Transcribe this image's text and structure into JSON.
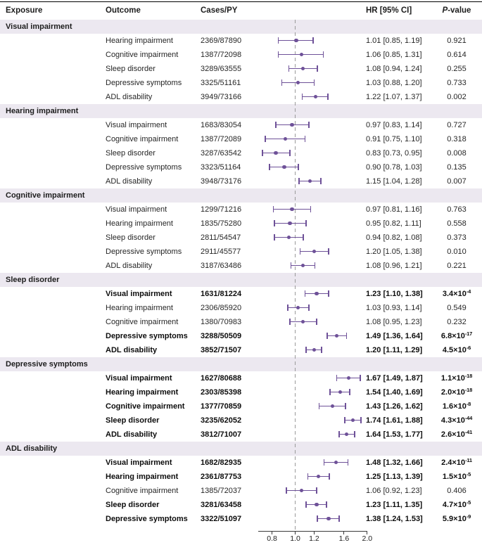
{
  "chart_data": {
    "type": "forest",
    "columns": [
      "Exposure",
      "Outcome",
      "Cases/PY",
      "HR [95% CI]"
    ],
    "p_column": {
      "italic_part": "P",
      "rest": "-value"
    },
    "x_axis": {
      "scale": "log",
      "range": [
        0.7,
        2.0
      ],
      "ticks": [
        "0.8",
        "1.0",
        "1.2",
        "1.6",
        "2.0"
      ],
      "reference_line": 1.0
    },
    "colors": {
      "marker": "#6e5198",
      "section_band": "#ece8f0",
      "reference_line": "#9a9a9a"
    },
    "sections": [
      {
        "exposure": "Visual impairment",
        "rows": [
          {
            "outcome": "Hearing impairment",
            "cases_py": "2369/87890",
            "hr": 1.01,
            "ci": [
              0.85,
              1.19
            ],
            "hr_text": "1.01 [0.85, 1.19]",
            "p_base": "0.921",
            "p_sup": "",
            "bold": false
          },
          {
            "outcome": "Cognitive impairment",
            "cases_py": "1387/72098",
            "hr": 1.06,
            "ci": [
              0.85,
              1.31
            ],
            "hr_text": "1.06 [0.85, 1.31]",
            "p_base": "0.614",
            "p_sup": "",
            "bold": false
          },
          {
            "outcome": "Sleep disorder",
            "cases_py": "3289/63555",
            "hr": 1.08,
            "ci": [
              0.94,
              1.24
            ],
            "hr_text": "1.08 [0.94, 1.24]",
            "p_base": "0.255",
            "p_sup": "",
            "bold": false
          },
          {
            "outcome": "Depressive symptoms",
            "cases_py": "3325/51161",
            "hr": 1.03,
            "ci": [
              0.88,
              1.2
            ],
            "hr_text": "1.03 [0.88, 1.20]",
            "p_base": "0.733",
            "p_sup": "",
            "bold": false
          },
          {
            "outcome": "ADL disability",
            "cases_py": "3949/73166",
            "hr": 1.22,
            "ci": [
              1.07,
              1.37
            ],
            "hr_text": "1.22 [1.07, 1.37]",
            "p_base": "0.002",
            "p_sup": "",
            "bold": false
          }
        ]
      },
      {
        "exposure": "Hearing impairment",
        "rows": [
          {
            "outcome": "Visual impairment",
            "cases_py": "1683/83054",
            "hr": 0.97,
            "ci": [
              0.83,
              1.14
            ],
            "hr_text": "0.97 [0.83, 1.14]",
            "p_base": "0.727",
            "p_sup": "",
            "bold": false
          },
          {
            "outcome": "Cognitive impairment",
            "cases_py": "1387/72089",
            "hr": 0.91,
            "ci": [
              0.75,
              1.1
            ],
            "hr_text": "0.91 [0.75, 1.10]",
            "p_base": "0.318",
            "p_sup": "",
            "bold": false
          },
          {
            "outcome": "Sleep disorder",
            "cases_py": "3287/63542",
            "hr": 0.83,
            "ci": [
              0.73,
              0.95
            ],
            "hr_text": "0.83 [0.73, 0.95]",
            "p_base": "0.008",
            "p_sup": "",
            "bold": false
          },
          {
            "outcome": "Depressive symptoms",
            "cases_py": "3323/51164",
            "hr": 0.9,
            "ci": [
              0.78,
              1.03
            ],
            "hr_text": "0.90 [0.78, 1.03]",
            "p_base": "0.135",
            "p_sup": "",
            "bold": false
          },
          {
            "outcome": "ADL disability",
            "cases_py": "3948/73176",
            "hr": 1.15,
            "ci": [
              1.04,
              1.28
            ],
            "hr_text": "1.15 [1.04, 1.28]",
            "p_base": "0.007",
            "p_sup": "",
            "bold": false
          }
        ]
      },
      {
        "exposure": "Cognitive impairment",
        "rows": [
          {
            "outcome": "Visual impairment",
            "cases_py": "1299/71216",
            "hr": 0.97,
            "ci": [
              0.81,
              1.16
            ],
            "hr_text": "0.97 [0.81, 1.16]",
            "p_base": "0.763",
            "p_sup": "",
            "bold": false
          },
          {
            "outcome": "Hearing impairment",
            "cases_py": "1835/75280",
            "hr": 0.95,
            "ci": [
              0.82,
              1.11
            ],
            "hr_text": "0.95 [0.82, 1.11]",
            "p_base": "0.558",
            "p_sup": "",
            "bold": false
          },
          {
            "outcome": "Sleep disorder",
            "cases_py": "2811/54547",
            "hr": 0.94,
            "ci": [
              0.82,
              1.08
            ],
            "hr_text": "0.94 [0.82, 1.08]",
            "p_base": "0.373",
            "p_sup": "",
            "bold": false
          },
          {
            "outcome": "Depressive symptoms",
            "cases_py": "2911/45577",
            "hr": 1.2,
            "ci": [
              1.05,
              1.38
            ],
            "hr_text": "1.20 [1.05, 1.38]",
            "p_base": "0.010",
            "p_sup": "",
            "bold": false
          },
          {
            "outcome": "ADL disability",
            "cases_py": "3187/63486",
            "hr": 1.08,
            "ci": [
              0.96,
              1.21
            ],
            "hr_text": "1.08 [0.96, 1.21]",
            "p_base": "0.221",
            "p_sup": "",
            "bold": false
          }
        ]
      },
      {
        "exposure": "Sleep disorder",
        "rows": [
          {
            "outcome": "Visual impairment",
            "cases_py": "1631/81224",
            "hr": 1.23,
            "ci": [
              1.1,
              1.38
            ],
            "hr_text": "1.23 [1.10, 1.38]",
            "p_base": "3.4×10",
            "p_sup": "-4",
            "bold": true
          },
          {
            "outcome": "Hearing impairment",
            "cases_py": "2306/85920",
            "hr": 1.03,
            "ci": [
              0.93,
              1.14
            ],
            "hr_text": "1.03 [0.93, 1.14]",
            "p_base": "0.549",
            "p_sup": "",
            "bold": false
          },
          {
            "outcome": "Cognitive impairment",
            "cases_py": "1380/70983",
            "hr": 1.08,
            "ci": [
              0.95,
              1.23
            ],
            "hr_text": "1.08 [0.95, 1.23]",
            "p_base": "0.232",
            "p_sup": "",
            "bold": false
          },
          {
            "outcome": "Depressive symptoms",
            "cases_py": "3288/50509",
            "hr": 1.49,
            "ci": [
              1.36,
              1.64
            ],
            "hr_text": "1.49 [1.36, 1.64]",
            "p_base": "6.8×10",
            "p_sup": "-17",
            "bold": true
          },
          {
            "outcome": "ADL disability",
            "cases_py": "3852/71507",
            "hr": 1.2,
            "ci": [
              1.11,
              1.29
            ],
            "hr_text": "1.20 [1.11, 1.29]",
            "p_base": "4.5×10",
            "p_sup": "-6",
            "bold": true
          }
        ]
      },
      {
        "exposure": "Depressive symptoms",
        "rows": [
          {
            "outcome": "Visual impairment",
            "cases_py": "1627/80688",
            "hr": 1.67,
            "ci": [
              1.49,
              1.87
            ],
            "hr_text": "1.67 [1.49, 1.87]",
            "p_base": "1.1×10",
            "p_sup": "-18",
            "bold": true
          },
          {
            "outcome": "Hearing impairment",
            "cases_py": "2303/85398",
            "hr": 1.54,
            "ci": [
              1.4,
              1.69
            ],
            "hr_text": "1.54 [1.40, 1.69]",
            "p_base": "2.0×10",
            "p_sup": "-18",
            "bold": true
          },
          {
            "outcome": "Cognitive impairment",
            "cases_py": "1377/70859",
            "hr": 1.43,
            "ci": [
              1.26,
              1.62
            ],
            "hr_text": "1.43 [1.26, 1.62]",
            "p_base": "1.6×10",
            "p_sup": "-8",
            "bold": true
          },
          {
            "outcome": "Sleep disorder",
            "cases_py": "3235/62052",
            "hr": 1.74,
            "ci": [
              1.61,
              1.88
            ],
            "hr_text": "1.74 [1.61, 1.88]",
            "p_base": "4.3×10",
            "p_sup": "-44",
            "bold": true
          },
          {
            "outcome": "ADL disability",
            "cases_py": "3812/71007",
            "hr": 1.64,
            "ci": [
              1.53,
              1.77
            ],
            "hr_text": "1.64 [1.53, 1.77]",
            "p_base": "2.6×10",
            "p_sup": "-41",
            "bold": true
          }
        ]
      },
      {
        "exposure": "ADL disability",
        "rows": [
          {
            "outcome": "Visual impairment",
            "cases_py": "1682/82935",
            "hr": 1.48,
            "ci": [
              1.32,
              1.66
            ],
            "hr_text": "1.48 [1.32, 1.66]",
            "p_base": "2.4×10",
            "p_sup": "-11",
            "bold": true
          },
          {
            "outcome": "Hearing impairment",
            "cases_py": "2361/87753",
            "hr": 1.25,
            "ci": [
              1.13,
              1.39
            ],
            "hr_text": "1.25 [1.13, 1.39]",
            "p_base": "1.5×10",
            "p_sup": "-5",
            "bold": true
          },
          {
            "outcome": "Cognitive impairment",
            "cases_py": "1385/72037",
            "hr": 1.06,
            "ci": [
              0.92,
              1.23
            ],
            "hr_text": "1.06 [0.92, 1.23]",
            "p_base": "0.406",
            "p_sup": "",
            "bold": false
          },
          {
            "outcome": "Sleep disorder",
            "cases_py": "3281/63458",
            "hr": 1.23,
            "ci": [
              1.11,
              1.35
            ],
            "hr_text": "1.23 [1.11, 1.35]",
            "p_base": "4.7×10",
            "p_sup": "-5",
            "bold": true
          },
          {
            "outcome": "Depressive symptoms",
            "cases_py": "3322/51097",
            "hr": 1.38,
            "ci": [
              1.24,
              1.53
            ],
            "hr_text": "1.38 [1.24, 1.53]",
            "p_base": "5.9×10",
            "p_sup": "-9",
            "bold": true
          }
        ]
      }
    ]
  }
}
